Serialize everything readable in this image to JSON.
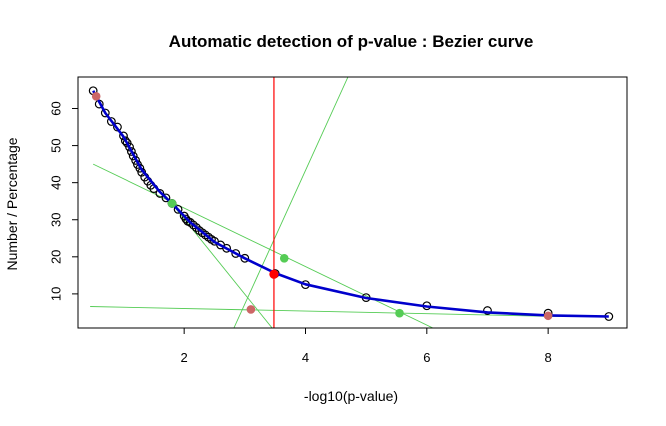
{
  "chart_data": {
    "type": "scatter",
    "title": "Automatic detection of p-value : Bezier curve",
    "xlabel": "-log10(p-value)",
    "ylabel": "Number / Percentage",
    "xlim": [
      0.25,
      9.3
    ],
    "ylim": [
      0.8,
      68.5
    ],
    "x_ticks": [
      2,
      4,
      6,
      8
    ],
    "y_ticks": [
      10,
      20,
      30,
      40,
      50,
      60
    ],
    "grid": false,
    "legend": "none",
    "colors": {
      "points": "#000000",
      "curve": "#0000cc",
      "tangent_lines": "#55cc55",
      "control_points": "#55cc55",
      "end_points": "#cc6666",
      "detected_point": "#ff0000",
      "threshold_line": "#ff0000"
    },
    "observed_points": [
      [
        0.5,
        64.8
      ],
      [
        0.6,
        61.2
      ],
      [
        0.7,
        58.8
      ],
      [
        0.8,
        56.5
      ],
      [
        0.9,
        55.0
      ],
      [
        1.0,
        52.6
      ],
      [
        1.03,
        51.3
      ],
      [
        1.06,
        50.7
      ],
      [
        1.1,
        49.6
      ],
      [
        1.13,
        48.4
      ],
      [
        1.16,
        47.2
      ],
      [
        1.2,
        46.0
      ],
      [
        1.23,
        44.9
      ],
      [
        1.27,
        43.9
      ],
      [
        1.3,
        42.8
      ],
      [
        1.35,
        41.5
      ],
      [
        1.4,
        40.4
      ],
      [
        1.45,
        39.3
      ],
      [
        1.5,
        38.4
      ],
      [
        1.6,
        37.1
      ],
      [
        1.7,
        35.9
      ],
      [
        1.8,
        34.4
      ],
      [
        1.9,
        32.8
      ],
      [
        2.0,
        31.0
      ],
      [
        2.03,
        30.2
      ],
      [
        2.06,
        29.6
      ],
      [
        2.1,
        29.3
      ],
      [
        2.15,
        28.6
      ],
      [
        2.2,
        27.9
      ],
      [
        2.25,
        27.1
      ],
      [
        2.3,
        26.5
      ],
      [
        2.35,
        25.9
      ],
      [
        2.4,
        25.3
      ],
      [
        2.45,
        24.7
      ],
      [
        2.5,
        24.2
      ],
      [
        2.6,
        23.2
      ],
      [
        2.7,
        22.3
      ],
      [
        2.85,
        20.9
      ],
      [
        3.0,
        19.6
      ],
      [
        3.5,
        15.5
      ],
      [
        4.0,
        12.5
      ],
      [
        5.0,
        9.0
      ],
      [
        6.0,
        6.8
      ],
      [
        7.0,
        5.5
      ],
      [
        8.0,
        4.8
      ],
      [
        9.0,
        3.9
      ]
    ],
    "bezier_curve": [
      [
        0.5,
        64.8
      ],
      [
        0.7,
        58.8
      ],
      [
        1.0,
        52.4
      ],
      [
        1.3,
        43.5
      ],
      [
        1.6,
        37.5
      ],
      [
        1.8,
        34.4
      ],
      [
        2.1,
        29.3
      ],
      [
        2.5,
        24.0
      ],
      [
        3.0,
        19.6
      ],
      [
        3.5,
        15.6
      ],
      [
        4.0,
        12.6
      ],
      [
        5.0,
        8.9
      ],
      [
        6.0,
        6.6
      ],
      [
        7.0,
        5.0
      ],
      [
        8.0,
        4.2
      ],
      [
        9.0,
        3.9
      ]
    ],
    "end_points": [
      [
        0.55,
        63.3
      ],
      [
        3.1,
        5.8
      ],
      [
        8.0,
        4.1
      ]
    ],
    "control_points": [
      [
        1.8,
        34.4
      ],
      [
        3.65,
        19.6
      ],
      [
        5.55,
        4.8
      ]
    ],
    "detected_point": [
      3.48,
      15.3
    ],
    "threshold_x": 3.48,
    "tangent_lines": [
      [
        [
          0.5,
          45.0
        ],
        [
          6.1,
          0.8
        ]
      ],
      [
        [
          0.45,
          6.6
        ],
        [
          8.2,
          3.9
        ]
      ],
      [
        [
          2.82,
          0.8
        ],
        [
          4.7,
          68.5
        ]
      ],
      [
        [
          1.65,
          37.3
        ],
        [
          3.45,
          0.8
        ]
      ]
    ]
  }
}
